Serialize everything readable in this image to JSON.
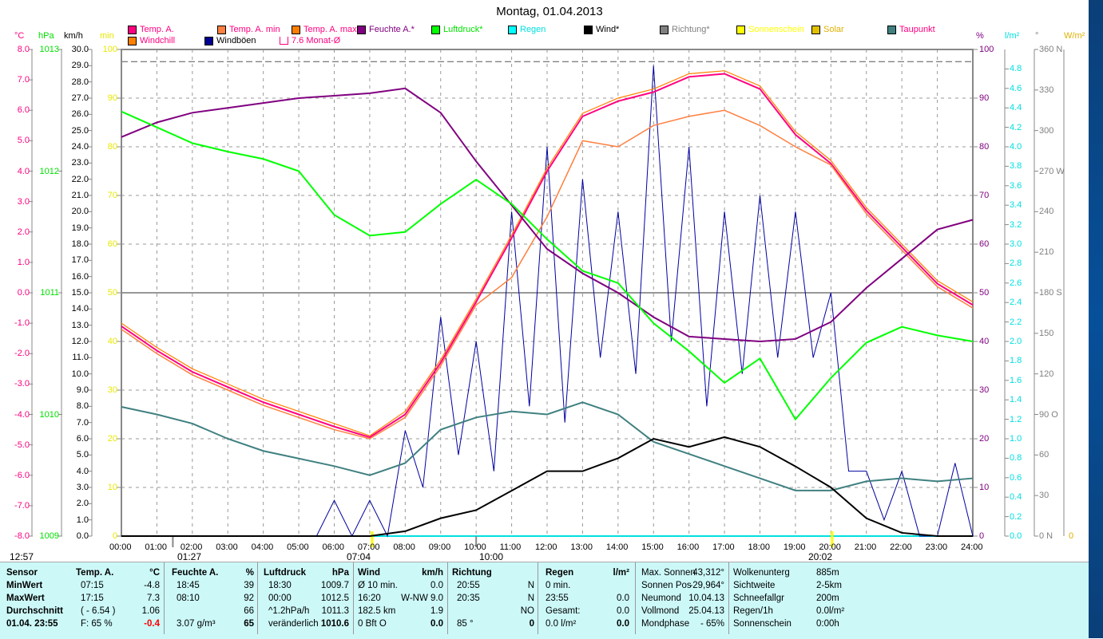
{
  "title": "Montag, 01.04.2013",
  "legend": [
    {
      "label": "Temp. A.",
      "color": "#ff0080",
      "text": "#ff0080"
    },
    {
      "label": "Temp. A. min",
      "color": "#ff8040",
      "text": "#ff0080"
    },
    {
      "label": "Temp. A. max",
      "color": "#ff8000",
      "text": "#ff0080"
    },
    {
      "label": "Feuchte A.*",
      "color": "#800080",
      "text": "#800080"
    },
    {
      "label": "Luftdruck*",
      "color": "#00ff00",
      "text": "#00e000"
    },
    {
      "label": "Regen",
      "color": "#00ffff",
      "text": "#00e0e0"
    },
    {
      "label": "Wind*",
      "color": "#000000",
      "text": "#000000"
    },
    {
      "label": "Richtung*",
      "color": "#808080",
      "text": "#808080"
    },
    {
      "label": "Sonnenschein",
      "color": "#ffff00",
      "text": "#ffff00"
    },
    {
      "label": "Solar",
      "color": "#e0c000",
      "text": "#e0b000"
    },
    {
      "label": "Taupunkt",
      "color": "#408080",
      "text": "#ff0080"
    },
    {
      "label": "Windchill",
      "color": "#ff8000",
      "text": "#ff0080"
    },
    {
      "label": "Windböen",
      "color": "#000090",
      "text": "#000000"
    },
    {
      "label": "7.6 Monat-Ø",
      "color": "#ffffff",
      "text": "#ff0080"
    }
  ],
  "units": {
    "temp": "°C",
    "hpa": "hPa",
    "kmh": "km/h",
    "min": "min",
    "pct": "%",
    "rain": "l/m²",
    "deg": "°",
    "solar": "W/m²"
  },
  "chart_data": {
    "type": "line",
    "title": "Montag, 01.04.2013",
    "x_unit": "hour",
    "x_ticks": [
      "00:00",
      "01:00",
      "02:00",
      "03:00",
      "04:00",
      "05:00",
      "06:00",
      "07:00",
      "08:00",
      "09:00",
      "10:00",
      "11:00",
      "12:00",
      "13:00",
      "14:00",
      "15:00",
      "16:00",
      "17:00",
      "18:00",
      "19:00",
      "20:00",
      "21:00",
      "22:00",
      "23:00",
      "24:00"
    ],
    "axes": {
      "temp": {
        "range": [
          -8,
          8
        ],
        "ticks": [
          "8.0",
          "7.0",
          "6.0",
          "5.0",
          "4.0",
          "3.0",
          "2.0",
          "1.0",
          "0.0",
          "-1.0",
          "-2.0",
          "-3.0",
          "-4.0",
          "-5.0",
          "-6.0",
          "-7.0",
          "-8.0"
        ]
      },
      "hpa": {
        "range": [
          1009,
          1013
        ],
        "ticks": [
          "1013",
          "1012",
          "1011",
          "1010",
          "1009"
        ]
      },
      "kmh": {
        "range": [
          0,
          30
        ],
        "ticks": [
          "30.0",
          "29.0",
          "28.0",
          "27.0",
          "26.0",
          "25.0",
          "24.0",
          "23.0",
          "22.0",
          "21.0",
          "20.0",
          "19.0",
          "18.0",
          "17.0",
          "16.0",
          "15.0",
          "14.0",
          "13.0",
          "12.0",
          "11.0",
          "10.0",
          "9.0",
          "8.0",
          "7.0",
          "6.0",
          "5.0",
          "4.0",
          "3.0",
          "2.0",
          "1.0",
          "0.0"
        ]
      },
      "min": {
        "range": [
          0,
          100
        ],
        "ticks": [
          "100",
          "90",
          "80",
          "70",
          "60",
          "50",
          "40",
          "30",
          "20",
          "10",
          "0"
        ]
      },
      "pct": {
        "range": [
          0,
          100
        ],
        "ticks": [
          "100",
          "90",
          "80",
          "70",
          "60",
          "50",
          "40",
          "30",
          "20",
          "10",
          "0"
        ]
      },
      "rain": {
        "range": [
          0,
          5
        ],
        "ticks": [
          "4.8",
          "4.6",
          "4.4",
          "4.2",
          "4.0",
          "3.8",
          "3.6",
          "3.4",
          "3.2",
          "3.0",
          "2.8",
          "2.6",
          "2.4",
          "2.2",
          "2.0",
          "1.8",
          "1.6",
          "1.4",
          "1.2",
          "1.0",
          "0.8",
          "0.6",
          "0.4",
          "0.2",
          "0.0"
        ]
      },
      "deg": {
        "range": [
          0,
          360
        ],
        "ticks": [
          "360 N",
          "330",
          "300",
          "270 W",
          "240",
          "210",
          "180 S",
          "150",
          "120",
          "90 O",
          "60",
          "30",
          "0 N"
        ]
      },
      "solar": {
        "ticks": [
          "0"
        ]
      }
    },
    "month_avg_temp": 7.6,
    "x": [
      0,
      1,
      2,
      3,
      4,
      5,
      6,
      7,
      8,
      9,
      10,
      11,
      12,
      13,
      14,
      15,
      16,
      17,
      18,
      19,
      20,
      21,
      22,
      23,
      24
    ],
    "series": [
      {
        "name": "Temp. A.",
        "axis": "temp",
        "values": [
          -1.1,
          -1.9,
          -2.6,
          -3.1,
          -3.6,
          -4.0,
          -4.4,
          -4.75,
          -4.0,
          -2.3,
          -0.3,
          1.8,
          4.0,
          5.8,
          6.3,
          6.6,
          7.1,
          7.2,
          6.7,
          5.2,
          4.25,
          2.7,
          1.5,
          0.3,
          -0.4
        ]
      },
      {
        "name": "Temp. A. max",
        "axis": "temp",
        "values": [
          -1.0,
          -1.8,
          -2.5,
          -3.0,
          -3.5,
          -3.9,
          -4.3,
          -4.7,
          -3.9,
          -2.2,
          -0.2,
          1.9,
          4.1,
          5.9,
          6.4,
          6.7,
          7.2,
          7.3,
          6.8,
          5.3,
          4.35,
          2.8,
          1.6,
          0.4,
          -0.3
        ]
      },
      {
        "name": "Temp. A. min",
        "axis": "temp",
        "values": [
          -1.2,
          -2.0,
          -2.7,
          -3.2,
          -3.7,
          -4.1,
          -4.5,
          -4.8,
          -4.1,
          -2.4,
          -0.4,
          0.5,
          2.5,
          5.0,
          4.8,
          5.5,
          5.8,
          6.0,
          5.5,
          4.8,
          4.2,
          2.6,
          1.4,
          0.2,
          -0.5
        ]
      },
      {
        "name": "Feuchte A.",
        "axis": "pct",
        "values": [
          82,
          85,
          87,
          88,
          89,
          90,
          90.5,
          91,
          92,
          87,
          77,
          68,
          59,
          54,
          50,
          45,
          41,
          40.5,
          40,
          40.5,
          44,
          51,
          57,
          63,
          65
        ]
      },
      {
        "name": "Luftdruck",
        "axis": "hpa",
        "values": [
          1012.49,
          1012.36,
          1012.23,
          1012.16,
          1012.1,
          1012.0,
          1011.64,
          1011.47,
          1011.5,
          1011.73,
          1011.93,
          1011.73,
          1011.44,
          1011.18,
          1011.08,
          1010.75,
          1010.52,
          1010.26,
          1010.46,
          1009.96,
          1010.3,
          1010.59,
          1010.72,
          1010.65,
          1010.6
        ]
      },
      {
        "name": "Taupunkt",
        "axis": "temp",
        "values": [
          -3.75,
          -4.0,
          -4.3,
          -4.8,
          -5.2,
          -5.45,
          -5.7,
          -6.0,
          -5.6,
          -4.5,
          -4.1,
          -3.9,
          -4.0,
          -3.6,
          -4.0,
          -4.9,
          -5.3,
          -5.7,
          -6.1,
          -6.5,
          -6.5,
          -6.2,
          -6.1,
          -6.2,
          -6.1
        ]
      },
      {
        "name": "Wind",
        "axis": "kmh",
        "values": [
          0,
          0,
          0,
          0,
          0,
          0,
          0,
          0,
          0.3,
          1.1,
          1.6,
          2.8,
          4.0,
          4.0,
          4.8,
          6.0,
          5.5,
          6.1,
          5.5,
          4.3,
          3.0,
          1.1,
          0.2,
          0,
          0
        ]
      }
    ],
    "gusts": {
      "name": "Windböen",
      "axis": "kmh",
      "step_hours": 0.5,
      "values": [
        0,
        0,
        0,
        0,
        0,
        0,
        0,
        0,
        0,
        0,
        0,
        0,
        2.2,
        0,
        2.2,
        0,
        6.5,
        3,
        13.5,
        5,
        12,
        4,
        20,
        8,
        24,
        7,
        22,
        11,
        20,
        10,
        29,
        12,
        24,
        8,
        20,
        10,
        21,
        11,
        20,
        11,
        15,
        4,
        4,
        1,
        4,
        0,
        0,
        4.5,
        0
      ]
    }
  },
  "sun_markers": [
    {
      "label": "12:57"
    },
    {
      "label": "01:27"
    },
    {
      "label": "07:04"
    },
    {
      "label": "10:00"
    },
    {
      "label": "20:02"
    }
  ],
  "table": {
    "sensor": {
      "header": "Sensor",
      "rows": [
        "MinWert",
        "MaxWert",
        "Durchschnitt",
        "01.04. 23:55"
      ]
    },
    "columns": [
      {
        "h": [
          "Temp. A.",
          "°C"
        ],
        "rows": [
          [
            "07:15",
            "-4.8"
          ],
          [
            "17:15",
            "7.3"
          ],
          [
            "( - 6.54 )",
            "1.06"
          ],
          [
            "F: 65 %",
            "-0.4"
          ]
        ]
      },
      {
        "h": [
          "Feuchte A.",
          "%"
        ],
        "rows": [
          [
            "18:45",
            "39"
          ],
          [
            "08:10",
            "92"
          ],
          [
            "",
            "66"
          ],
          [
            "3.07 g/m³",
            "65"
          ]
        ]
      },
      {
        "h": [
          "Luftdruck",
          "hPa"
        ],
        "rows": [
          [
            "18:30",
            "1009.7"
          ],
          [
            "00:00",
            "1012.5"
          ],
          [
            "^1.2hPa/h",
            "1011.3"
          ],
          [
            "veränderlich",
            "1010.6"
          ]
        ]
      },
      {
        "h": [
          "Wind",
          "km/h"
        ],
        "rows": [
          [
            "Ø 10 min.",
            "0.0"
          ],
          [
            "16:20",
            "W-NW 9.0"
          ],
          [
            "182.5 km",
            "1.9"
          ],
          [
            "0 Bft O",
            "0.0"
          ]
        ]
      },
      {
        "h": [
          "Richtung",
          ""
        ],
        "rows": [
          [
            "20:55",
            "N"
          ],
          [
            "20:35",
            "N"
          ],
          [
            "",
            "NO"
          ],
          [
            "85 °",
            "0"
          ]
        ]
      },
      {
        "h": [
          "Regen",
          "l/m²"
        ],
        "rows": [
          [
            "0 min.",
            ""
          ],
          [
            "23:55",
            "0.0"
          ],
          [
            "Gesamt:",
            "0.0"
          ],
          [
            "0.0 l/m²",
            "0.0"
          ]
        ]
      }
    ],
    "sun": [
      [
        "Max. Sonnen",
        "43,312°"
      ],
      [
        "Sonnen Pos",
        "-29,964°"
      ],
      [
        "Neumond",
        "10.04.13"
      ],
      [
        "Vollmond",
        "25.04.13"
      ],
      [
        "Mondphase",
        "- 65%"
      ]
    ],
    "cloud": [
      [
        "Wolkenunterg",
        "885m"
      ],
      [
        "Sichtweite",
        "2-5km"
      ],
      [
        "Schneefallgr",
        "200m"
      ],
      [
        "Regen/1h",
        "0.0l/m²"
      ],
      [
        "Sonnenschein",
        "0:00h"
      ]
    ]
  }
}
